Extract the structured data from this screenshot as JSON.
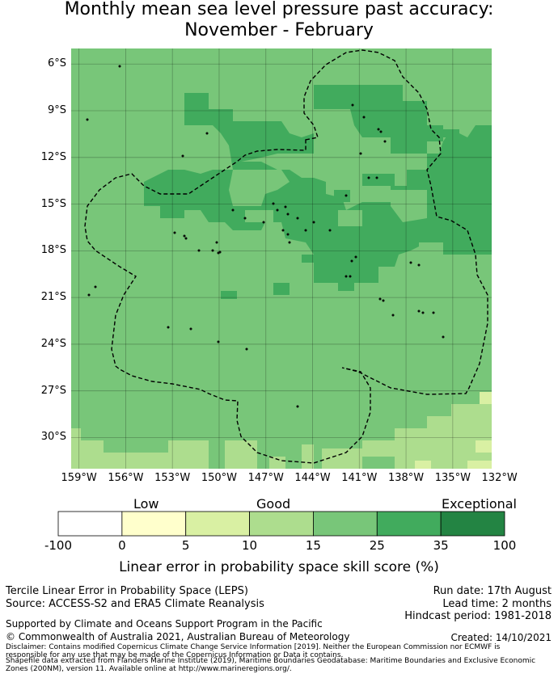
{
  "title_line1": "Monthly mean sea level pressure past accuracy:",
  "title_line2": "November - February",
  "map": {
    "y_ticks": [
      "6°S",
      "9°S",
      "12°S",
      "15°S",
      "18°S",
      "21°S",
      "24°S",
      "27°S",
      "30°S"
    ],
    "x_ticks": [
      "159°W",
      "156°W",
      "153°W",
      "150°W",
      "147°W",
      "144°W",
      "141°W",
      "138°W",
      "135°W",
      "132°W"
    ],
    "lon_range": [
      -159.5,
      -132.5
    ],
    "lat_range": [
      -32,
      -5
    ]
  },
  "colorbar": {
    "categories": [
      "Low",
      "Good",
      "Exceptional"
    ],
    "ticks": [
      "-100",
      "0",
      "5",
      "10",
      "15",
      "25",
      "35",
      "100"
    ],
    "colors": [
      "#ffffff",
      "#ffffcc",
      "#d9f0a3",
      "#addd8e",
      "#78c679",
      "#41ab5d",
      "#238443"
    ],
    "label": "Linear error in probability space skill score (%)"
  },
  "footer": {
    "method": "Tercile Linear Error in Probability Space (LEPS)",
    "source": "Source: ACCESS-S2 and ERA5 Climate Reanalysis",
    "run_date": "Run date: 17th August",
    "lead_time": "Lead time: 2 months",
    "hindcast": "Hindcast period: 1981-2018",
    "supported": "Supported by Climate and Oceans Support Program in the Pacific",
    "copyright": "© Commonwealth of Australia 2021, Australian Bureau of Meteorology",
    "created": "Created: 14/10/2021",
    "disclaimer_1": "Disclaimer: Contains modified Copernicus Climate Change Service Information [2019]. Neither the European Commission nor ECMWF is",
    "disclaimer_2": "responsible for any use that may be made of the Copernicus Information or Data it contains.",
    "disclaimer_3": "Shapefile data extracted from Flanders Marine Institute (2019), Maritime Boundaries Geodatabase: Maritime Boundaries and Exclusive Economic",
    "disclaimer_4": "Zones (200NM), version 11. Available online at http://www.marineregions.org/."
  }
}
